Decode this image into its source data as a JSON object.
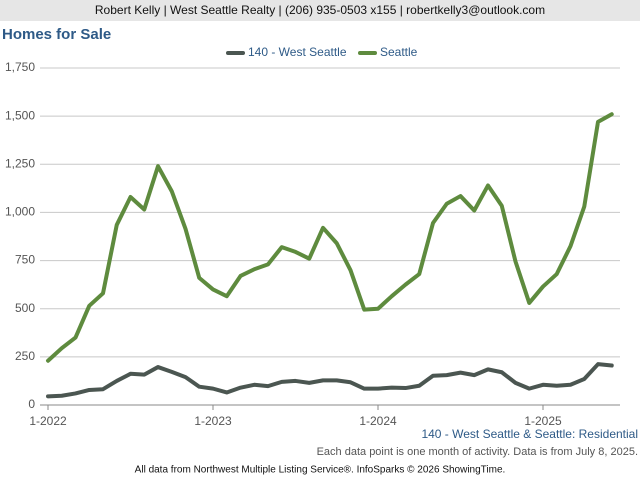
{
  "header": "Robert Kelly | West Seattle Realty | (206) 935-0503 x155 | robertkelly3@outlook.com",
  "chart_data": {
    "type": "line",
    "title": "Homes for Sale",
    "categories": [
      "1-2022",
      null,
      null,
      null,
      null,
      null,
      null,
      null,
      null,
      null,
      null,
      null,
      "1-2023",
      null,
      null,
      null,
      null,
      null,
      null,
      null,
      null,
      null,
      null,
      null,
      "1-2024",
      null,
      null,
      null,
      null,
      null,
      null,
      null,
      null,
      null,
      null,
      null,
      "1-2025",
      null,
      null,
      null,
      null,
      null
    ],
    "series": [
      {
        "name": "140 - West Seattle",
        "color": "#4b5651",
        "values": [
          45,
          48,
          60,
          78,
          82,
          125,
          162,
          158,
          197,
          172,
          145,
          95,
          85,
          65,
          90,
          105,
          98,
          120,
          125,
          115,
          128,
          128,
          118,
          85,
          85,
          90,
          88,
          100,
          152,
          155,
          168,
          155,
          185,
          170,
          115,
          85,
          105,
          100,
          105,
          135,
          212,
          205
        ]
      },
      {
        "name": "Seattle",
        "color": "#5e8b3e",
        "values": [
          230,
          295,
          350,
          515,
          580,
          935,
          1080,
          1015,
          1240,
          1110,
          915,
          660,
          600,
          565,
          670,
          705,
          730,
          820,
          795,
          760,
          920,
          840,
          700,
          495,
          500,
          565,
          625,
          680,
          945,
          1045,
          1085,
          1010,
          1140,
          1035,
          745,
          530,
          615,
          680,
          825,
          1030,
          1470,
          1510
        ]
      }
    ],
    "ylim": [
      0,
      1750
    ],
    "yticks": [
      0,
      250,
      500,
      750,
      {
        "value": 1000,
        "label": "1,000"
      },
      {
        "value": 1250,
        "label": "1,250"
      },
      {
        "value": 1500,
        "label": "1,500"
      },
      {
        "value": 1750,
        "label": "1,750"
      }
    ],
    "grid": true,
    "legend": "top",
    "caption": "140 - West Seattle & Seattle: Residential",
    "note": "Each data point is one month of activity. Data is from July 8, 2025.",
    "source": "All data from Northwest Multiple Listing Service®. InfoSparks © 2026 ShowingTime."
  }
}
